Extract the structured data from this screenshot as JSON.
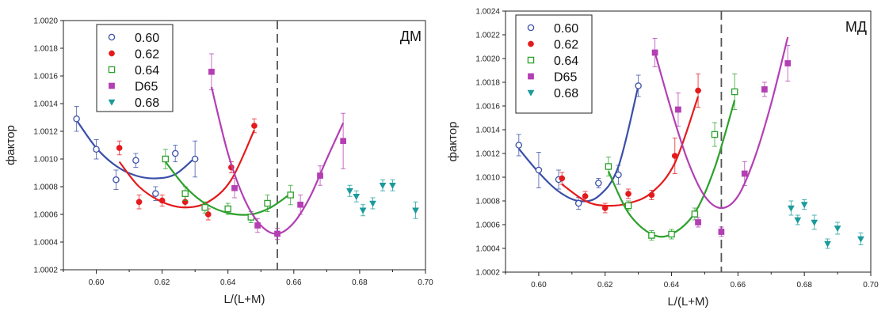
{
  "chart_data": [
    {
      "type": "scatter",
      "panel_label": "ДМ",
      "xlabel": "L/(L+M)",
      "ylabel": "фактор",
      "xlim": [
        0.59,
        0.7
      ],
      "ylim": [
        1.0002,
        1.002
      ],
      "x_ticks": [
        "0.60",
        "0.62",
        "0.64",
        "0.66",
        "0.68",
        "0.70"
      ],
      "y_ticks": [
        "1.0002",
        "1.0004",
        "1.0006",
        "1.0008",
        "1.0010",
        "1.0012",
        "1.0014",
        "1.0016",
        "1.0018",
        "1.0020"
      ],
      "grid": false,
      "legend_position": "top-left",
      "reference_line_x": 0.655,
      "series": [
        {
          "name": "0.60",
          "color": "#3a4fa8",
          "marker": "circle-open",
          "x": [
            0.594,
            0.6,
            0.606,
            0.612,
            0.618,
            0.624,
            0.63
          ],
          "y": [
            1.00129,
            1.00107,
            1.00085,
            1.00099,
            1.00075,
            1.00104,
            1.001
          ],
          "err": [
            9e-05,
            7e-05,
            7e-05,
            5e-05,
            5e-05,
            6e-05,
            0.00013
          ],
          "fit": [
            [
              0.594,
              1.00128
            ],
            [
              0.6,
              1.00108
            ],
            [
              0.606,
              1.00095
            ],
            [
              0.612,
              1.00088
            ],
            [
              0.618,
              1.00086
            ],
            [
              0.624,
              1.00089
            ],
            [
              0.63,
              1.00101
            ]
          ]
        },
        {
          "name": "0.62",
          "color": "#e41a1c",
          "marker": "circle-filled",
          "x": [
            0.607,
            0.613,
            0.62,
            0.627,
            0.634,
            0.641,
            0.648
          ],
          "y": [
            1.00108,
            1.00069,
            1.0007,
            1.00069,
            1.0006,
            1.00094,
            1.00124
          ],
          "err": [
            5e-05,
            5e-05,
            4e-05,
            4e-05,
            4e-05,
            4e-05,
            5e-05
          ],
          "fit": [
            [
              0.607,
              1.00098
            ],
            [
              0.613,
              1.0008
            ],
            [
              0.62,
              1.00069
            ],
            [
              0.627,
              1.00065
            ],
            [
              0.634,
              1.00069
            ],
            [
              0.641,
              1.00085
            ],
            [
              0.648,
              1.00121
            ]
          ]
        },
        {
          "name": "0.64",
          "color": "#2ca02c",
          "marker": "square-open",
          "x": [
            0.621,
            0.627,
            0.633,
            0.64,
            0.647,
            0.652,
            0.659
          ],
          "y": [
            1.001,
            1.00075,
            1.00065,
            1.00064,
            1.00058,
            1.00068,
            1.00074
          ],
          "err": [
            7e-05,
            5e-05,
            4e-05,
            4e-05,
            4e-05,
            6e-05,
            7e-05
          ],
          "fit": [
            [
              0.621,
              1.00098
            ],
            [
              0.627,
              1.0008
            ],
            [
              0.633,
              1.00068
            ],
            [
              0.64,
              1.00061
            ],
            [
              0.647,
              1.0006
            ],
            [
              0.653,
              1.00065
            ],
            [
              0.659,
              1.00075
            ]
          ]
        },
        {
          "name": "D65",
          "color": "#b33fb3",
          "marker": "square-filled",
          "x": [
            0.635,
            0.642,
            0.649,
            0.655,
            0.662,
            0.668,
            0.675
          ],
          "y": [
            1.00163,
            1.00079,
            1.00052,
            1.00046,
            1.00067,
            1.00088,
            1.00113
          ],
          "err": [
            0.00013,
            7e-05,
            5e-05,
            4e-05,
            7e-05,
            7e-05,
            0.0002
          ],
          "fit": [
            [
              0.635,
              1.00152
            ],
            [
              0.64,
              1.00104
            ],
            [
              0.645,
              1.00071
            ],
            [
              0.65,
              1.00052
            ],
            [
              0.655,
              1.00046
            ],
            [
              0.66,
              1.00054
            ],
            [
              0.665,
              1.00073
            ],
            [
              0.67,
              1.001
            ],
            [
              0.675,
              1.00126
            ]
          ]
        },
        {
          "name": "0.68",
          "color": "#1a9a9a",
          "marker": "triangle-down-filled",
          "x": [
            0.677,
            0.679,
            0.681,
            0.684,
            0.687,
            0.69,
            0.697
          ],
          "y": [
            1.00077,
            1.00073,
            1.00063,
            1.00068,
            1.00081,
            1.00081,
            1.00063
          ],
          "err": [
            4e-05,
            4e-05,
            4e-05,
            4e-05,
            4e-05,
            4e-05,
            6e-05
          ],
          "fit": []
        }
      ]
    },
    {
      "type": "scatter",
      "panel_label": "МД",
      "xlabel": "L/(L+M)",
      "ylabel": "фактор",
      "xlim": [
        0.59,
        0.7
      ],
      "ylim": [
        1.0002,
        1.0024
      ],
      "x_ticks": [
        "0.60",
        "0.62",
        "0.64",
        "0.66",
        "0.68",
        "0.70"
      ],
      "y_ticks": [
        "1.0002",
        "1.0004",
        "1.0006",
        "1.0008",
        "1.0010",
        "1.0012",
        "1.0014",
        "1.0016",
        "1.0018",
        "1.0020",
        "1.0022",
        "1.0024"
      ],
      "grid": false,
      "legend_position": "top-left",
      "reference_line_x": 0.655,
      "series": [
        {
          "name": "0.60",
          "color": "#3a4fa8",
          "marker": "circle-open",
          "x": [
            0.594,
            0.6,
            0.606,
            0.612,
            0.618,
            0.624,
            0.63
          ],
          "y": [
            1.00127,
            1.00106,
            1.00098,
            1.00078,
            1.00095,
            1.00102,
            1.00177
          ],
          "err": [
            9e-05,
            0.00015,
            8e-05,
            5e-05,
            4e-05,
            8e-05,
            9e-05
          ],
          "fit": [
            [
              0.594,
              1.00124
            ],
            [
              0.6,
              1.00104
            ],
            [
              0.606,
              1.00088
            ],
            [
              0.612,
              1.0008
            ],
            [
              0.618,
              1.00084
            ],
            [
              0.624,
              1.00109
            ],
            [
              0.63,
              1.00177
            ]
          ]
        },
        {
          "name": "0.62",
          "color": "#e41a1c",
          "marker": "circle-filled",
          "x": [
            0.607,
            0.614,
            0.62,
            0.627,
            0.634,
            0.641,
            0.648
          ],
          "y": [
            1.00099,
            1.00084,
            1.00074,
            1.00086,
            1.00085,
            1.00118,
            1.00173
          ],
          "err": [
            5e-05,
            4e-05,
            4e-05,
            4e-05,
            4e-05,
            0.00015,
            0.00014
          ],
          "fit": [
            [
              0.607,
              1.00094
            ],
            [
              0.614,
              1.0008
            ],
            [
              0.62,
              1.00076
            ],
            [
              0.627,
              1.00078
            ],
            [
              0.634,
              1.00087
            ],
            [
              0.641,
              1.00112
            ],
            [
              0.648,
              1.00168
            ]
          ]
        },
        {
          "name": "0.64",
          "color": "#2ca02c",
          "marker": "square-open",
          "x": [
            0.621,
            0.627,
            0.634,
            0.64,
            0.647,
            0.653,
            0.659
          ],
          "y": [
            1.00109,
            1.00076,
            1.00051,
            1.00052,
            1.00069,
            1.00136,
            1.00172
          ],
          "err": [
            8e-05,
            4e-05,
            4e-05,
            4e-05,
            5e-05,
            0.0001,
            0.00015
          ],
          "fit": [
            [
              0.621,
              1.00105
            ],
            [
              0.627,
              1.0007
            ],
            [
              0.634,
              1.00052
            ],
            [
              0.64,
              1.00052
            ],
            [
              0.647,
              1.0007
            ],
            [
              0.653,
              1.00108
            ],
            [
              0.659,
              1.00165
            ]
          ]
        },
        {
          "name": "D65",
          "color": "#b33fb3",
          "marker": "square-filled",
          "x": [
            0.635,
            0.642,
            0.648,
            0.655,
            0.662,
            0.668,
            0.675
          ],
          "y": [
            1.00205,
            1.00157,
            1.00062,
            1.00054,
            1.00103,
            1.00174,
            1.00196
          ],
          "err": [
            0.00012,
            0.00014,
            4e-05,
            4e-05,
            0.0001,
            6e-05,
            0.00015
          ],
          "fit": [
            [
              0.635,
              1.00205
            ],
            [
              0.64,
              1.00156
            ],
            [
              0.645,
              1.00113
            ],
            [
              0.65,
              1.00084
            ],
            [
              0.655,
              1.00074
            ],
            [
              0.66,
              1.00084
            ],
            [
              0.665,
              1.00116
            ],
            [
              0.67,
              1.00162
            ],
            [
              0.675,
              1.00218
            ]
          ]
        },
        {
          "name": "0.68",
          "color": "#1a9a9a",
          "marker": "triangle-down-filled",
          "x": [
            0.676,
            0.678,
            0.68,
            0.683,
            0.687,
            0.69,
            0.697
          ],
          "y": [
            1.00074,
            1.00064,
            1.00077,
            1.00062,
            1.00044,
            1.00057,
            1.00048
          ],
          "err": [
            6e-05,
            4e-05,
            4e-05,
            6e-05,
            4e-05,
            5e-05,
            5e-05
          ],
          "fit": []
        }
      ]
    }
  ]
}
